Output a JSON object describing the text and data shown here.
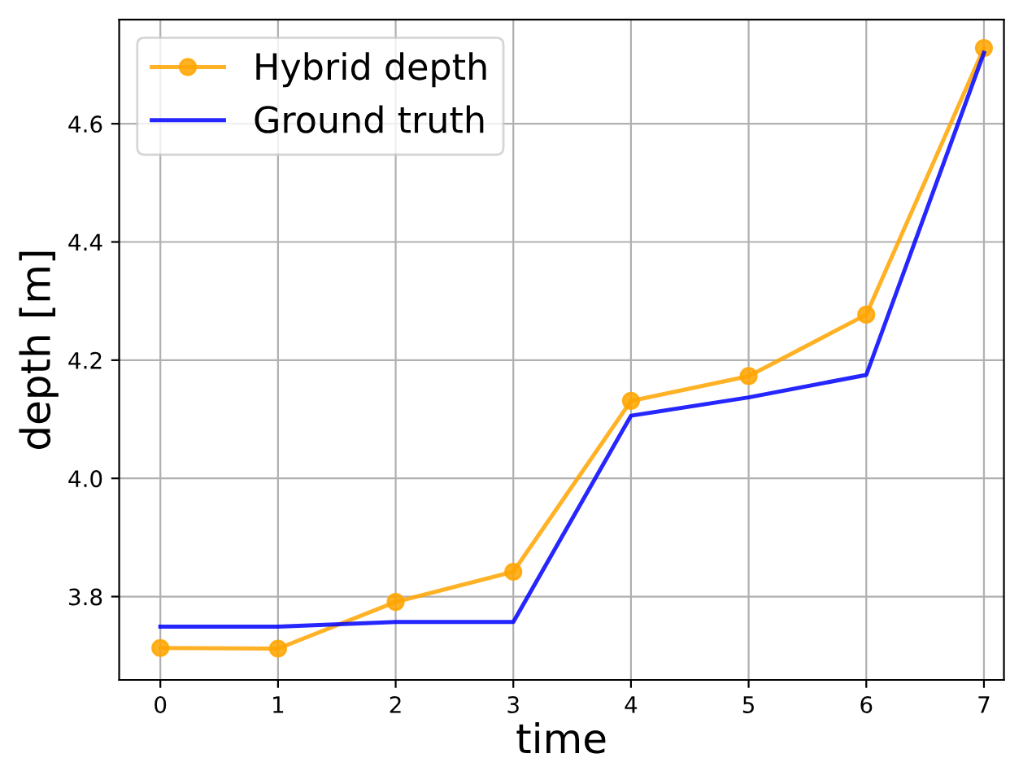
{
  "chart_data": {
    "type": "line",
    "xlabel": "time",
    "ylabel": "depth [m]",
    "x": [
      0,
      1,
      2,
      3,
      4,
      5,
      6,
      7
    ],
    "series": [
      {
        "name": "Hybrid depth",
        "color": "#ffa500",
        "marker": "circle",
        "values": [
          3.713,
          3.712,
          3.791,
          3.842,
          4.131,
          4.173,
          4.277,
          4.728
        ]
      },
      {
        "name": "Ground truth",
        "color": "#0000ff",
        "marker": "none",
        "values": [
          3.749,
          3.749,
          3.757,
          3.757,
          4.106,
          4.137,
          4.175,
          4.72
        ]
      }
    ],
    "xlim": [
      -0.35,
      7.17
    ],
    "ylim": [
      3.659,
      4.776
    ],
    "xticks": [
      0,
      1,
      2,
      3,
      4,
      5,
      6,
      7
    ],
    "yticks": [
      3.8,
      {
        "value": 4.0,
        "label": "4.0"
      },
      4.2,
      4.4,
      4.6
    ],
    "grid": true,
    "legend": "top left"
  }
}
